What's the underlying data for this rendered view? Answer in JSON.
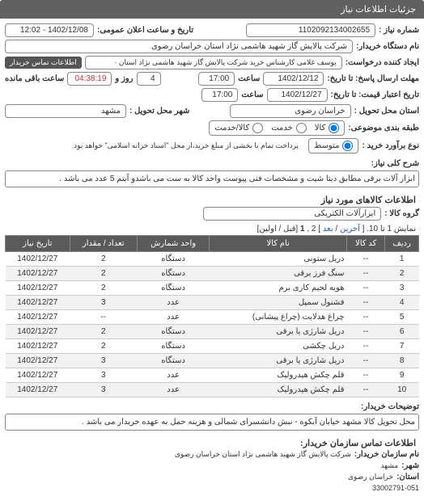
{
  "header": {
    "title": "جزئیات اطلاعات نیاز"
  },
  "top": {
    "label_num": "شماره نیاز :",
    "need_number": "1102092134002655",
    "label_datetime": "تاریخ و ساعت اعلان عمومی:",
    "datetime": "1402/12/08 - 12:02"
  },
  "buyer": {
    "label": "نام دستگاه خریدار:",
    "value": "شرکت پالایش گاز شهید هاشمی نژاد   استان خراسان رضوی"
  },
  "requester": {
    "label": "ایجاد کننده درخواست:",
    "value": "یوسف غلامی کارشناس خرید شرکت پالایش گاز شهید هاشمی نژاد   استان ·",
    "contact_btn": "اطلاعات تماس خریدار"
  },
  "deadline": {
    "label_to": "مهلت ارسال پاسخ: تا تاریخ:",
    "date": "1402/12/12",
    "label_time": "ساعت",
    "time": "17:00",
    "label_remain_days": "روز و",
    "days": "4",
    "label_remain_time": "ساعت باقی مانده",
    "remain_time": "04:38:19"
  },
  "validity": {
    "label_to": "تاریخ اعتبار قیمت: تا تاریخ:",
    "date": "1402/12/27",
    "label_time": "ساعت",
    "time": "17:00"
  },
  "loc": {
    "label_prov": "استان محل تحویل :",
    "prov": "خراسان رضوی",
    "label_city": "شهر محل تحویل :",
    "city": "مشهد"
  },
  "budget": {
    "label": "طبقه بندی موضوعی:",
    "opt_goods": "کالا",
    "opt_service": "خدمت",
    "opt_rent": "کالا/خدمت"
  },
  "purchase_type": {
    "label": "نوع برآورد خرید :",
    "opt_med": "متوسط",
    "note": "پرداخت تمام یا بخشی از مبلغ خرید،از محل \"اسناد خزانه اسلامی\" خواهد بود."
  },
  "need_title": {
    "label": "شرح کلی نیاز:",
    "text": "ابزار آلات برقی مطابق دیتا شیت و مشخصات فنی پیوست واحد کالا به ست می باشدو آیتم 5 عدد می باشد ."
  },
  "goods_section_title": "اطلاعات کالاهای مورد نیاز",
  "group": {
    "label": "گروه کالا :",
    "value": "ابزارآلات الکتریکی"
  },
  "pager": {
    "prefix": "نمایش 1 تا 10. [ ",
    "last": "آخرین",
    "sep1": " / ",
    "next": "بعد",
    "mid": " ] 2 ,",
    "cur": "1",
    "suffix": " [قبل /  اولین]"
  },
  "table": {
    "headers": [
      "ردیف",
      "کد کالا",
      "نام کالا",
      "واحد شمارش",
      "تعداد / مقدار",
      "تاریخ نیاز"
    ],
    "rows": [
      [
        "1",
        "--",
        "دریل ستونی",
        "دستگاه",
        "2",
        "1402/12/27"
      ],
      [
        "2",
        "--",
        "سنگ فرز برقی",
        "دستگاه",
        "2",
        "1402/12/27"
      ],
      [
        "3",
        "--",
        "هویه لحیم کاری برم",
        "دستگاه",
        "2",
        "1402/12/27"
      ],
      [
        "4",
        "--",
        "فشنول سمپل",
        "عدد",
        "3",
        "1402/12/27"
      ],
      [
        "5",
        "--",
        "چراغ هدلایت (چراغ پیشانی)",
        "عدد",
        "--",
        "1402/12/27"
      ],
      [
        "6",
        "--",
        "دریل شارژی یا برقی",
        "دستگاه",
        "2",
        "1402/12/27"
      ],
      [
        "7",
        "--",
        "دریل چکشی",
        "دستگاه",
        "2",
        "1402/12/27"
      ],
      [
        "8",
        "--",
        "دریل شارژی یا برقی",
        "دستگاه",
        "3",
        "1402/12/27"
      ],
      [
        "9",
        "--",
        "قلم چکش هیدرولیک",
        "عدد",
        "3",
        "1402/12/27"
      ],
      [
        "10",
        "--",
        "قلم چکش هیدرولیک",
        "عدد",
        "3",
        "1402/12/27"
      ]
    ]
  },
  "delivery_note": {
    "label": "توضیحات خریدار:",
    "text": "محل تحویل کالا مشهد خیابان آبکوه - نبش دانشسرای شمالی و هزینه حمل به عهده خریدار می باشد ."
  },
  "contact_section": "اطلاعات تماس سازمان خریدار:",
  "contact": {
    "label_org": "نام سازمان خریدار:",
    "org": "شرکت پالایش گاز شهید هاشمی نژاد استان خراسان رضوی",
    "label_city": "شهر:",
    "city": "مشهد",
    "label_prov": "استان:",
    "prov": "خراسان رضوی",
    "phone": "33002791-051"
  }
}
